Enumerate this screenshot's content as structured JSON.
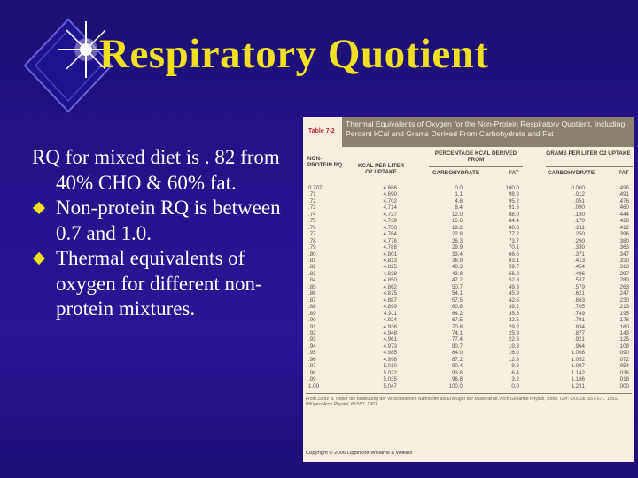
{
  "slide": {
    "title": "Respiratory Quotient",
    "lead": "RQ for mixed diet is . 82 from 40% CHO & 60% fat.",
    "bullets": [
      "Non-protein RQ is between 0.7 and 1.0.",
      "Thermal equivalents of oxygen for different non-protein mixtures."
    ],
    "colors": {
      "background": "#25128a",
      "title": "#f0e020",
      "text": "#ffffff",
      "bullet": "#f0e020"
    },
    "icons": {
      "logo": "starburst-diamond-icon",
      "bullet": "diamond-bullet-icon"
    }
  },
  "table": {
    "label": "Table 7-2",
    "title": "Thermal Equivalents of Oxygen for the Non-Protein Respiratory Quotient, Including Percent kCal and Grams Derived From Carbohydrate and Fat",
    "headers": {
      "rq": "NON-PROTEIN RQ",
      "kcal": "KCAL PER LITER O2 UPTAKE",
      "pct_group": "PERCENTAGE KCAL DERIVED FROM",
      "grams_group": "GRAMS PER LITER O2 UPTAKE",
      "carb": "CARBOHYDRATE",
      "fat": "FAT",
      "carb2": "CARBOHYDRATE",
      "fat2": "FAT"
    },
    "rq": [
      "0.707",
      ".71",
      ".72",
      ".73",
      ".74",
      ".75",
      ".76",
      ".77",
      ".78",
      ".79",
      ".80",
      ".81",
      ".82",
      ".83",
      ".84",
      ".85",
      ".86",
      ".87",
      ".88",
      ".89",
      ".90",
      ".91",
      ".92",
      ".93",
      ".94",
      ".95",
      ".96",
      ".97",
      ".98",
      ".99",
      "1.00"
    ],
    "kcal": [
      "4.686",
      "4.690",
      "4.702",
      "4.714",
      "4.727",
      "4.739",
      "4.750",
      "4.764",
      "4.776",
      "4.788",
      "4.801",
      "4.813",
      "4.825",
      "4.838",
      "4.850",
      "4.862",
      "4.875",
      "4.887",
      "4.899",
      "4.911",
      "4.924",
      "4.936",
      "4.948",
      "4.961",
      "4.973",
      "4.985",
      "4.998",
      "5.010",
      "5.022",
      "5.035",
      "5.047"
    ],
    "pct_carb": [
      "0.0",
      "1.1",
      "4.8",
      "8.4",
      "12.0",
      "15.6",
      "19.2",
      "22.8",
      "26.3",
      "29.9",
      "33.4",
      "36.9",
      "40.3",
      "43.8",
      "47.2",
      "50.7",
      "54.1",
      "57.5",
      "60.8",
      "64.2",
      "67.5",
      "70.8",
      "74.1",
      "77.4",
      "80.7",
      "84.0",
      "87.2",
      "90.4",
      "93.6",
      "96.8",
      "100.0"
    ],
    "pct_fat": [
      "100.0",
      "98.9",
      "95.2",
      "91.6",
      "88.0",
      "84.4",
      "80.8",
      "77.2",
      "73.7",
      "70.1",
      "66.6",
      "63.1",
      "59.7",
      "56.2",
      "52.8",
      "49.3",
      "45.9",
      "42.5",
      "39.2",
      "35.8",
      "32.5",
      "29.2",
      "25.9",
      "22.6",
      "19.3",
      "16.0",
      "12.8",
      "9.6",
      "6.4",
      "3.2",
      "0.0"
    ],
    "g_carb": [
      "0.000",
      ".012",
      ".051",
      ".090",
      ".130",
      ".170",
      ".211",
      ".250",
      ".290",
      ".330",
      ".371",
      ".413",
      ".454",
      ".496",
      ".537",
      ".579",
      ".621",
      ".663",
      ".705",
      ".749",
      ".791",
      ".834",
      ".877",
      ".921",
      ".964",
      "1.008",
      "1.052",
      "1.097",
      "1.142",
      "1.186",
      "1.231"
    ],
    "g_fat": [
      ".496",
      ".491",
      ".476",
      ".460",
      ".444",
      ".428",
      ".412",
      ".396",
      ".380",
      ".363",
      ".347",
      ".330",
      ".313",
      ".297",
      ".280",
      ".263",
      ".247",
      ".230",
      ".213",
      ".195",
      ".178",
      ".160",
      ".143",
      ".125",
      ".108",
      ".090",
      ".072",
      ".054",
      ".036",
      ".018",
      ".000"
    ],
    "source": "From Zuntz N. Ueber die Bedeutung der verschiedenen Nährstoffe als Erzeuger der Muskelkraft. Arch Gesamte Physiol, Bonn, Ger: LXXXIII, 557-571, 1901. Pflügers Arch Physiol, 83:557, 1901.",
    "copyright": "Copyright © 2006 Lippincott Williams & Wilkins"
  }
}
